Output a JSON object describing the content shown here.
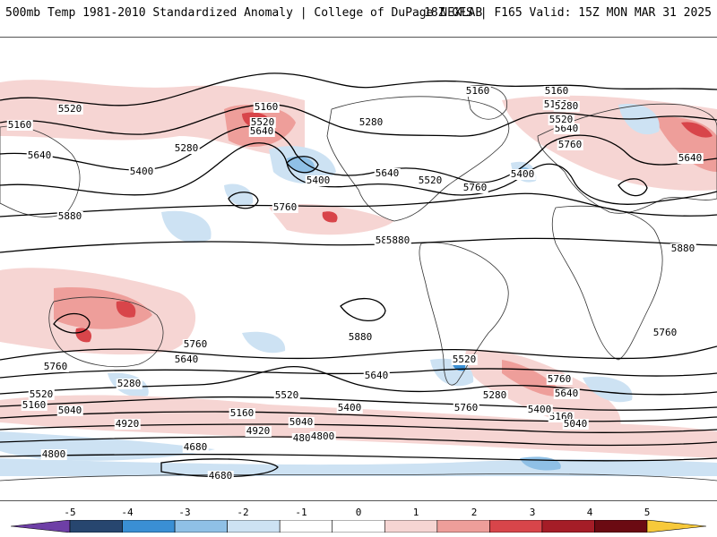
{
  "header": {
    "title_left": "500mb Temp 1981-2010 Standardized Anomaly | College of DuPage NEXLAB",
    "title_right": "18Z GFS | F165 Valid: 15Z MON MAR 31 2025"
  },
  "map": {
    "contour_labels": [
      "5160",
      "5520",
      "5640",
      "5160",
      "5280",
      "5400",
      "5520",
      "5640",
      "5160",
      "5280",
      "5400",
      "5640",
      "5520",
      "5760",
      "5160",
      "5160",
      "5280",
      "5520",
      "5640",
      "5760",
      "5400",
      "5880",
      "5760",
      "5880",
      "5880",
      "5880",
      "5760",
      "5640",
      "5760",
      "5640",
      "5520",
      "5760",
      "5640",
      "5520",
      "5280",
      "5160",
      "5040",
      "4920",
      "4800",
      "4680",
      "4680",
      "5280",
      "5160",
      "5040",
      "4920",
      "4800",
      "5400",
      "5280",
      "5760",
      "5640",
      "5520",
      "5400",
      "5160",
      "5040",
      "4920",
      "4800",
      "5520",
      "5880",
      "5760"
    ],
    "colors": {
      "warm_1": "#f6d5d3",
      "warm_2": "#ee9e9a",
      "warm_3": "#d8454a",
      "cold_1": "#cde2f3",
      "cold_2": "#8fc0e6",
      "cold_3": "#3a8fd4",
      "land_outline": "#333333",
      "contour": "#000000"
    }
  },
  "colorbar": {
    "labels": [
      "-5",
      "-4",
      "-3",
      "-2",
      "-1",
      "0",
      "1",
      "2",
      "3",
      "4",
      "5"
    ],
    "colors": [
      "#6e3fa6",
      "#27466f",
      "#3a8fd4",
      "#8fc0e6",
      "#cde2f3",
      "#ffffff",
      "#ffffff",
      "#f6d5d3",
      "#ee9e9a",
      "#d8454a",
      "#a51d27",
      "#6b0a12",
      "#f7c93a"
    ]
  }
}
